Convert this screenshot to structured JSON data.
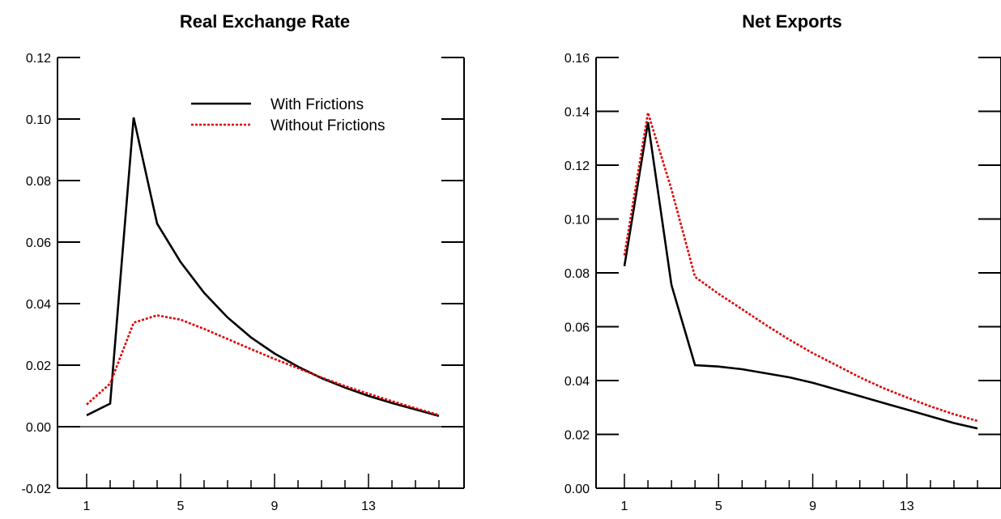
{
  "chart_data": [
    {
      "type": "line",
      "title": "Real Exchange Rate",
      "xlabel": "",
      "ylabel": "",
      "x": [
        1,
        2,
        3,
        4,
        5,
        6,
        7,
        8,
        9,
        10,
        11,
        12,
        13,
        14,
        15,
        16
      ],
      "xticks": [
        1,
        5,
        9,
        13
      ],
      "ylim": [
        -0.02,
        0.12
      ],
      "yticks": [
        "-0.02",
        "0.00",
        "0.02",
        "0.04",
        "0.06",
        "0.08",
        "0.10",
        "0.12"
      ],
      "zero_line": true,
      "legend": "top-right",
      "series": [
        {
          "name": "With Frictions",
          "color": "#000000",
          "style": "solid",
          "values": [
            0.0037,
            0.0075,
            0.1005,
            0.066,
            0.0535,
            0.0435,
            0.0355,
            0.029,
            0.0238,
            0.0195,
            0.0158,
            0.0127,
            0.01,
            0.0077,
            0.0056,
            0.0035
          ]
        },
        {
          "name": "Without Frictions",
          "color": "#e00000",
          "style": "dotted",
          "values": [
            0.0072,
            0.014,
            0.0338,
            0.0362,
            0.0348,
            0.0318,
            0.0285,
            0.0252,
            0.022,
            0.019,
            0.016,
            0.0132,
            0.0107,
            0.0083,
            0.006,
            0.0038
          ]
        }
      ]
    },
    {
      "type": "line",
      "title": "Net Exports",
      "xlabel": "",
      "ylabel": "",
      "x": [
        1,
        2,
        3,
        4,
        5,
        6,
        7,
        8,
        9,
        10,
        11,
        12,
        13,
        14,
        15,
        16
      ],
      "xticks": [
        1,
        5,
        9,
        13
      ],
      "ylim": [
        0.0,
        0.16
      ],
      "yticks": [
        "0.00",
        "0.02",
        "0.04",
        "0.06",
        "0.08",
        "0.10",
        "0.12",
        "0.14",
        "0.16"
      ],
      "zero_line": false,
      "legend": "none",
      "series": [
        {
          "name": "With Frictions",
          "color": "#000000",
          "style": "solid",
          "values": [
            0.0825,
            0.136,
            0.0755,
            0.0457,
            0.0452,
            0.0442,
            0.0427,
            0.0412,
            0.0392,
            0.0367,
            0.0342,
            0.0317,
            0.0292,
            0.0267,
            0.0242,
            0.0222
          ]
        },
        {
          "name": "Without Frictions",
          "color": "#e00000",
          "style": "dotted",
          "values": [
            0.0865,
            0.1395,
            0.111,
            0.0785,
            0.0722,
            0.0665,
            0.0607,
            0.0552,
            0.0502,
            0.0457,
            0.0412,
            0.0372,
            0.0337,
            0.0304,
            0.0275,
            0.025
          ]
        }
      ]
    }
  ]
}
